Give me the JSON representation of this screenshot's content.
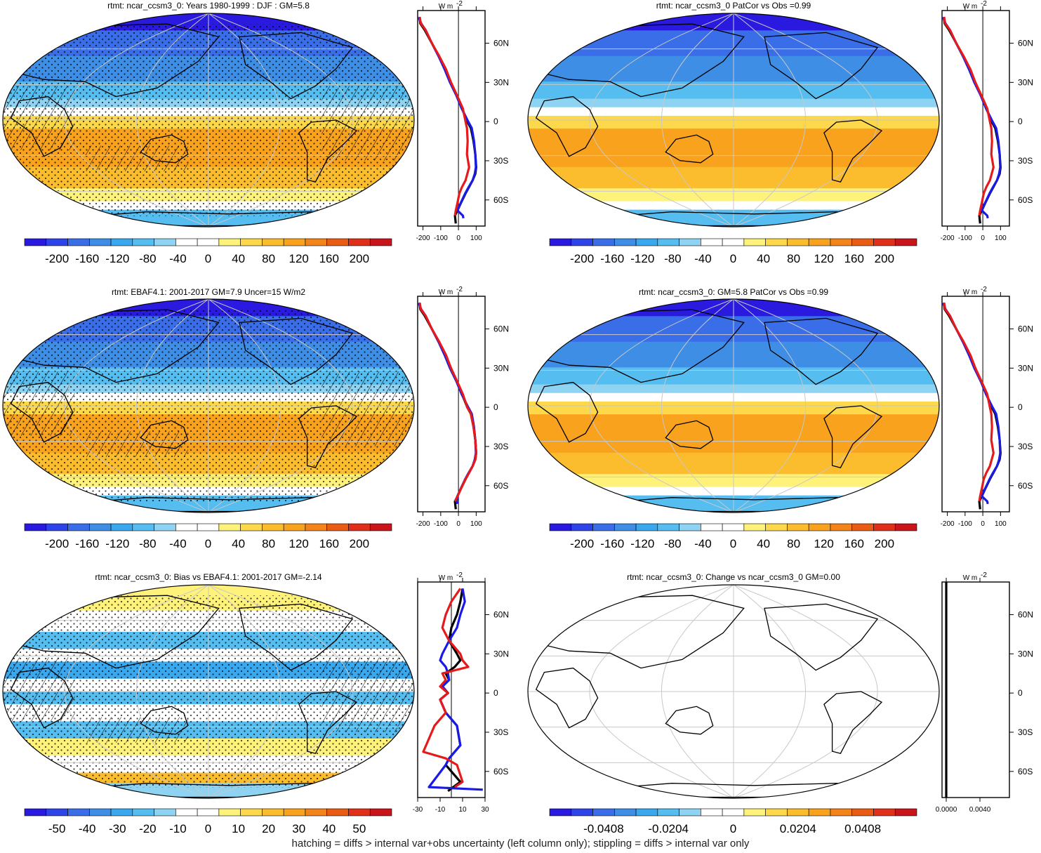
{
  "footer": "hatching = diffs > internal var+obs uncertainty (left column only); stippling = diffs > internal var only",
  "palette": [
    "#2a1ae0",
    "#2f44e8",
    "#3a6ee8",
    "#3f8ee6",
    "#3aa8ee",
    "#55bdf0",
    "#8fd3f2",
    "#ffffff",
    "#ffffff",
    "#fff27a",
    "#fcd84a",
    "#fbbd2e",
    "#f8a21e",
    "#f38419",
    "#ea5c14",
    "#e0301a",
    "#c8141a"
  ],
  "zonal_units": "W m",
  "zonal_units_exp": "-2",
  "lat_ticks": [
    "60N",
    "30N",
    "0",
    "30S",
    "60S"
  ],
  "panels": [
    {
      "title": "rtmt: ncar_ccsm3_0: Years 1980-1999 : DJF : GM=5.8",
      "map_style": "full",
      "stipple": true,
      "hatch": true,
      "colorbar_labels": [
        "-200",
        "-160",
        "-120",
        "-80",
        "-40",
        "0",
        "40",
        "80",
        "120",
        "160",
        "200"
      ],
      "zonal_ticks": [
        "-200",
        "-100",
        "0",
        "100"
      ],
      "zonal_xlim": [
        -230,
        150
      ]
    },
    {
      "title": "rtmt: ncar_ccsm3_0 PatCor vs Obs =0.99",
      "map_style": "full",
      "stipple": false,
      "hatch": false,
      "colorbar_labels": [
        "-200",
        "-160",
        "-120",
        "-80",
        "-40",
        "0",
        "40",
        "80",
        "120",
        "160",
        "200"
      ],
      "zonal_ticks": [
        "-200",
        "-100",
        "0",
        "100"
      ],
      "zonal_xlim": [
        -230,
        150
      ]
    },
    {
      "title": "rtmt: EBAF4.1: 2001-2017 GM=7.9 Uncer=15 W/m2",
      "map_style": "full",
      "stipple": true,
      "hatch": true,
      "colorbar_labels": [
        "-200",
        "-160",
        "-120",
        "-80",
        "-40",
        "0",
        "40",
        "80",
        "120",
        "160",
        "200"
      ],
      "zonal_ticks": [
        "-200",
        "-100",
        "0",
        "100"
      ],
      "zonal_xlim": [
        -230,
        150
      ]
    },
    {
      "title": "rtmt: ncar_ccsm3_0: GM=5.8 PatCor vs Obs =0.99",
      "map_style": "full",
      "stipple": false,
      "hatch": false,
      "colorbar_labels": [
        "-200",
        "-160",
        "-120",
        "-80",
        "-40",
        "0",
        "40",
        "80",
        "120",
        "160",
        "200"
      ],
      "zonal_ticks": [
        "-200",
        "-100",
        "0",
        "100"
      ],
      "zonal_xlim": [
        -230,
        150
      ]
    },
    {
      "title": "rtmt: ncar_ccsm3_0: Bias vs EBAF4.1: 2001-2017 GM=-2.14",
      "map_style": "bias",
      "stipple": true,
      "hatch": true,
      "colorbar_labels": [
        "-50",
        "-40",
        "-30",
        "-20",
        "-10",
        "0",
        "10",
        "20",
        "30",
        "40",
        "50"
      ],
      "zonal_ticks": [
        "-30",
        "-10",
        "10",
        "30"
      ],
      "zonal_xlim": [
        -30,
        30
      ]
    },
    {
      "title": "rtmt: ncar_ccsm3_0: Change vs ncar_ccsm3_0 GM=0.00",
      "map_style": "blank",
      "stipple": false,
      "hatch": false,
      "colorbar_labels": [
        "-0.0408",
        "-0.0204",
        "0",
        "0.0204",
        "0.0408"
      ],
      "zonal_ticks": [
        "0.0000",
        "0.0040"
      ],
      "zonal_xlim": [
        -0.0005,
        0.0075
      ]
    }
  ],
  "chart_data": [
    {
      "type": "line",
      "title": "rtmt: ncar_ccsm3_0: Years 1980-1999 : DJF : GM=5.8 (zonal mean)",
      "xlabel": "W m-2",
      "ylabel": "",
      "xlim": [
        -230,
        150
      ],
      "ylim": [
        -80,
        85
      ],
      "series": [
        {
          "color": "#000000",
          "x": [
            -220,
            -215,
            -190,
            -150,
            -110,
            -75,
            -45,
            -10,
            20,
            50,
            70,
            85,
            95,
            100,
            95,
            80,
            60,
            40,
            15,
            -5,
            -20,
            -15
          ],
          "y": [
            80,
            75,
            70,
            60,
            50,
            40,
            30,
            20,
            10,
            0,
            -5,
            -15,
            -25,
            -35,
            -40,
            -45,
            -50,
            -55,
            -62,
            -68,
            -72,
            -78
          ]
        },
        {
          "color": "#1a1ae6",
          "x": [
            -225,
            -210,
            -185,
            -150,
            -112,
            -78,
            -48,
            -12,
            18,
            55,
            75,
            88,
            95,
            98,
            92,
            80,
            58,
            38,
            14,
            -6,
            25,
            28
          ],
          "y": [
            80,
            75,
            70,
            60,
            50,
            40,
            30,
            20,
            10,
            0,
            -5,
            -15,
            -25,
            -35,
            -40,
            -45,
            -50,
            -55,
            -62,
            -68,
            -72,
            -74
          ]
        },
        {
          "color": "#e61a1a",
          "x": [
            -218,
            -212,
            -185,
            -150,
            -108,
            -70,
            -42,
            -8,
            25,
            40,
            48,
            52,
            48,
            60,
            40,
            20,
            5,
            -5,
            -15,
            -20
          ],
          "y": [
            80,
            75,
            70,
            60,
            50,
            40,
            30,
            20,
            10,
            0,
            -5,
            -15,
            -25,
            -35,
            -45,
            -50,
            -55,
            -62,
            -68,
            -72
          ]
        }
      ]
    },
    {
      "type": "line",
      "title": "rtmt: ncar_ccsm3_0 PatCor vs Obs =0.99 (zonal mean)",
      "xlabel": "W m-2",
      "ylabel": "",
      "xlim": [
        -230,
        150
      ],
      "ylim": [
        -80,
        85
      ],
      "series": [
        {
          "color": "#000000",
          "x": [
            -220,
            -215,
            -190,
            -150,
            -110,
            -75,
            -45,
            -10,
            20,
            50,
            70,
            85,
            95,
            100,
            95,
            80,
            60,
            40,
            15,
            -5,
            -20,
            -15
          ],
          "y": [
            80,
            75,
            70,
            60,
            50,
            40,
            30,
            20,
            10,
            0,
            -5,
            -15,
            -25,
            -35,
            -40,
            -45,
            -50,
            -55,
            -62,
            -68,
            -72,
            -78
          ]
        },
        {
          "color": "#1a1ae6",
          "x": [
            -225,
            -210,
            -185,
            -150,
            -112,
            -78,
            -48,
            -12,
            18,
            55,
            75,
            88,
            95,
            98,
            92,
            80,
            58,
            38,
            14,
            -6,
            25,
            28
          ],
          "y": [
            80,
            75,
            70,
            60,
            50,
            40,
            30,
            20,
            10,
            0,
            -5,
            -15,
            -25,
            -35,
            -40,
            -45,
            -50,
            -55,
            -62,
            -68,
            -72,
            -74
          ]
        },
        {
          "color": "#e61a1a",
          "x": [
            -218,
            -212,
            -185,
            -150,
            -108,
            -70,
            -42,
            -8,
            25,
            40,
            48,
            52,
            48,
            60,
            40,
            20,
            5,
            -5,
            -15,
            -20
          ],
          "y": [
            80,
            75,
            70,
            60,
            50,
            40,
            30,
            20,
            10,
            0,
            -5,
            -15,
            -25,
            -35,
            -45,
            -50,
            -55,
            -62,
            -68,
            -72
          ]
        }
      ]
    },
    {
      "type": "line",
      "title": "rtmt: EBAF4.1: 2001-2017 GM=7.9 Uncer=15 W/m2 (zonal mean)",
      "xlabel": "W m-2",
      "ylabel": "",
      "xlim": [
        -230,
        150
      ],
      "ylim": [
        -80,
        85
      ],
      "series": [
        {
          "color": "#000000",
          "x": [
            -220,
            -215,
            -190,
            -150,
            -110,
            -75,
            -45,
            -10,
            20,
            50,
            70,
            85,
            95,
            100,
            95,
            80,
            60,
            40,
            15,
            -5,
            -20,
            -15
          ],
          "y": [
            80,
            75,
            70,
            60,
            50,
            40,
            30,
            20,
            10,
            0,
            -5,
            -15,
            -25,
            -35,
            -40,
            -45,
            -50,
            -55,
            -62,
            -68,
            -72,
            -78
          ]
        },
        {
          "color": "#1a1ae6",
          "x": [
            -225,
            -210,
            -185,
            -150,
            -112,
            -78,
            -48,
            -12,
            18,
            55,
            75,
            88,
            95,
            98,
            92,
            80,
            58,
            38,
            14,
            -6,
            -10,
            -5
          ],
          "y": [
            80,
            75,
            70,
            60,
            50,
            40,
            30,
            20,
            10,
            0,
            -5,
            -15,
            -25,
            -35,
            -40,
            -45,
            -50,
            -55,
            -62,
            -68,
            -72,
            -74
          ]
        },
        {
          "color": "#e61a1a",
          "x": [
            -218,
            -212,
            -185,
            -150,
            -108,
            -70,
            -42,
            -8,
            25,
            50,
            70,
            85,
            95,
            100,
            95,
            80,
            60,
            40,
            15,
            -5,
            -20
          ],
          "y": [
            80,
            75,
            70,
            60,
            50,
            40,
            30,
            20,
            10,
            0,
            -5,
            -15,
            -25,
            -35,
            -40,
            -45,
            -50,
            -55,
            -62,
            -68,
            -72
          ]
        }
      ]
    },
    {
      "type": "line",
      "title": "rtmt: ncar_ccsm3_0: GM=5.8 PatCor vs Obs =0.99 (zonal mean)",
      "xlabel": "W m-2",
      "ylabel": "",
      "xlim": [
        -230,
        150
      ],
      "ylim": [
        -80,
        85
      ],
      "series": [
        {
          "color": "#000000",
          "x": [
            -220,
            -215,
            -190,
            -150,
            -110,
            -75,
            -45,
            -10,
            20,
            50,
            70,
            85,
            95,
            100,
            95,
            80,
            60,
            40,
            15,
            -5,
            -20,
            -15
          ],
          "y": [
            80,
            75,
            70,
            60,
            50,
            40,
            30,
            20,
            10,
            0,
            -5,
            -15,
            -25,
            -35,
            -40,
            -45,
            -50,
            -55,
            -62,
            -68,
            -72,
            -78
          ]
        },
        {
          "color": "#1a1ae6",
          "x": [
            -225,
            -210,
            -185,
            -150,
            -112,
            -78,
            -48,
            -12,
            18,
            55,
            75,
            88,
            95,
            98,
            92,
            80,
            58,
            38,
            14,
            -6,
            25,
            28
          ],
          "y": [
            80,
            75,
            70,
            60,
            50,
            40,
            30,
            20,
            10,
            0,
            -5,
            -15,
            -25,
            -35,
            -40,
            -45,
            -50,
            -55,
            -62,
            -68,
            -72,
            -74
          ]
        },
        {
          "color": "#e61a1a",
          "x": [
            -218,
            -212,
            -185,
            -150,
            -108,
            -70,
            -42,
            -8,
            25,
            40,
            48,
            52,
            48,
            60,
            40,
            20,
            5,
            -5,
            -15,
            -20
          ],
          "y": [
            80,
            75,
            70,
            60,
            50,
            40,
            30,
            20,
            10,
            0,
            -5,
            -15,
            -25,
            -35,
            -45,
            -50,
            -55,
            -62,
            -68,
            -72
          ]
        }
      ]
    },
    {
      "type": "line",
      "title": "rtmt: ncar_ccsm3_0: Bias vs EBAF4.1: 2001-2017 GM=-2.14 (zonal mean)",
      "xlabel": "W m-2",
      "ylabel": "",
      "xlim": [
        -30,
        30
      ],
      "ylim": [
        -80,
        85
      ],
      "series": [
        {
          "color": "#000000",
          "x": [
            10,
            8,
            5,
            0,
            -2,
            5,
            8,
            3,
            -5,
            -2,
            -8,
            -3,
            -10,
            -5,
            5,
            8,
            -2,
            -5,
            0,
            8,
            -3
          ],
          "y": [
            80,
            70,
            60,
            50,
            40,
            30,
            25,
            20,
            15,
            10,
            5,
            0,
            -5,
            -15,
            -25,
            -40,
            -50,
            -55,
            -60,
            -68,
            -75
          ]
        },
        {
          "color": "#1a1ae6",
          "x": [
            10,
            12,
            8,
            5,
            -2,
            -8,
            -10,
            -5,
            -3,
            -2,
            -8,
            -3,
            -10,
            -5,
            5,
            8,
            -2,
            -5,
            -20,
            28
          ],
          "y": [
            80,
            70,
            60,
            50,
            40,
            30,
            25,
            20,
            15,
            10,
            5,
            0,
            -5,
            -15,
            -25,
            -40,
            -50,
            -55,
            -72,
            -74
          ]
        },
        {
          "color": "#e61a1a",
          "x": [
            8,
            0,
            -5,
            -8,
            -2,
            8,
            10,
            15,
            -8,
            -5,
            -10,
            -3,
            -10,
            -5,
            -15,
            -25,
            -5,
            5,
            10,
            3
          ],
          "y": [
            80,
            70,
            60,
            50,
            40,
            30,
            25,
            20,
            15,
            10,
            5,
            0,
            -5,
            -15,
            -25,
            -45,
            -50,
            -55,
            -68,
            -72
          ]
        }
      ]
    },
    {
      "type": "line",
      "title": "rtmt: ncar_ccsm3_0: Change vs ncar_ccsm3_0 GM=0.00 (zonal mean)",
      "xlabel": "W m-2",
      "ylabel": "",
      "xlim": [
        -0.0005,
        0.0075
      ],
      "ylim": [
        -80,
        85
      ],
      "series": [
        {
          "color": "#000000",
          "x": [
            0,
            0
          ],
          "y": [
            -80,
            85
          ]
        }
      ]
    }
  ]
}
